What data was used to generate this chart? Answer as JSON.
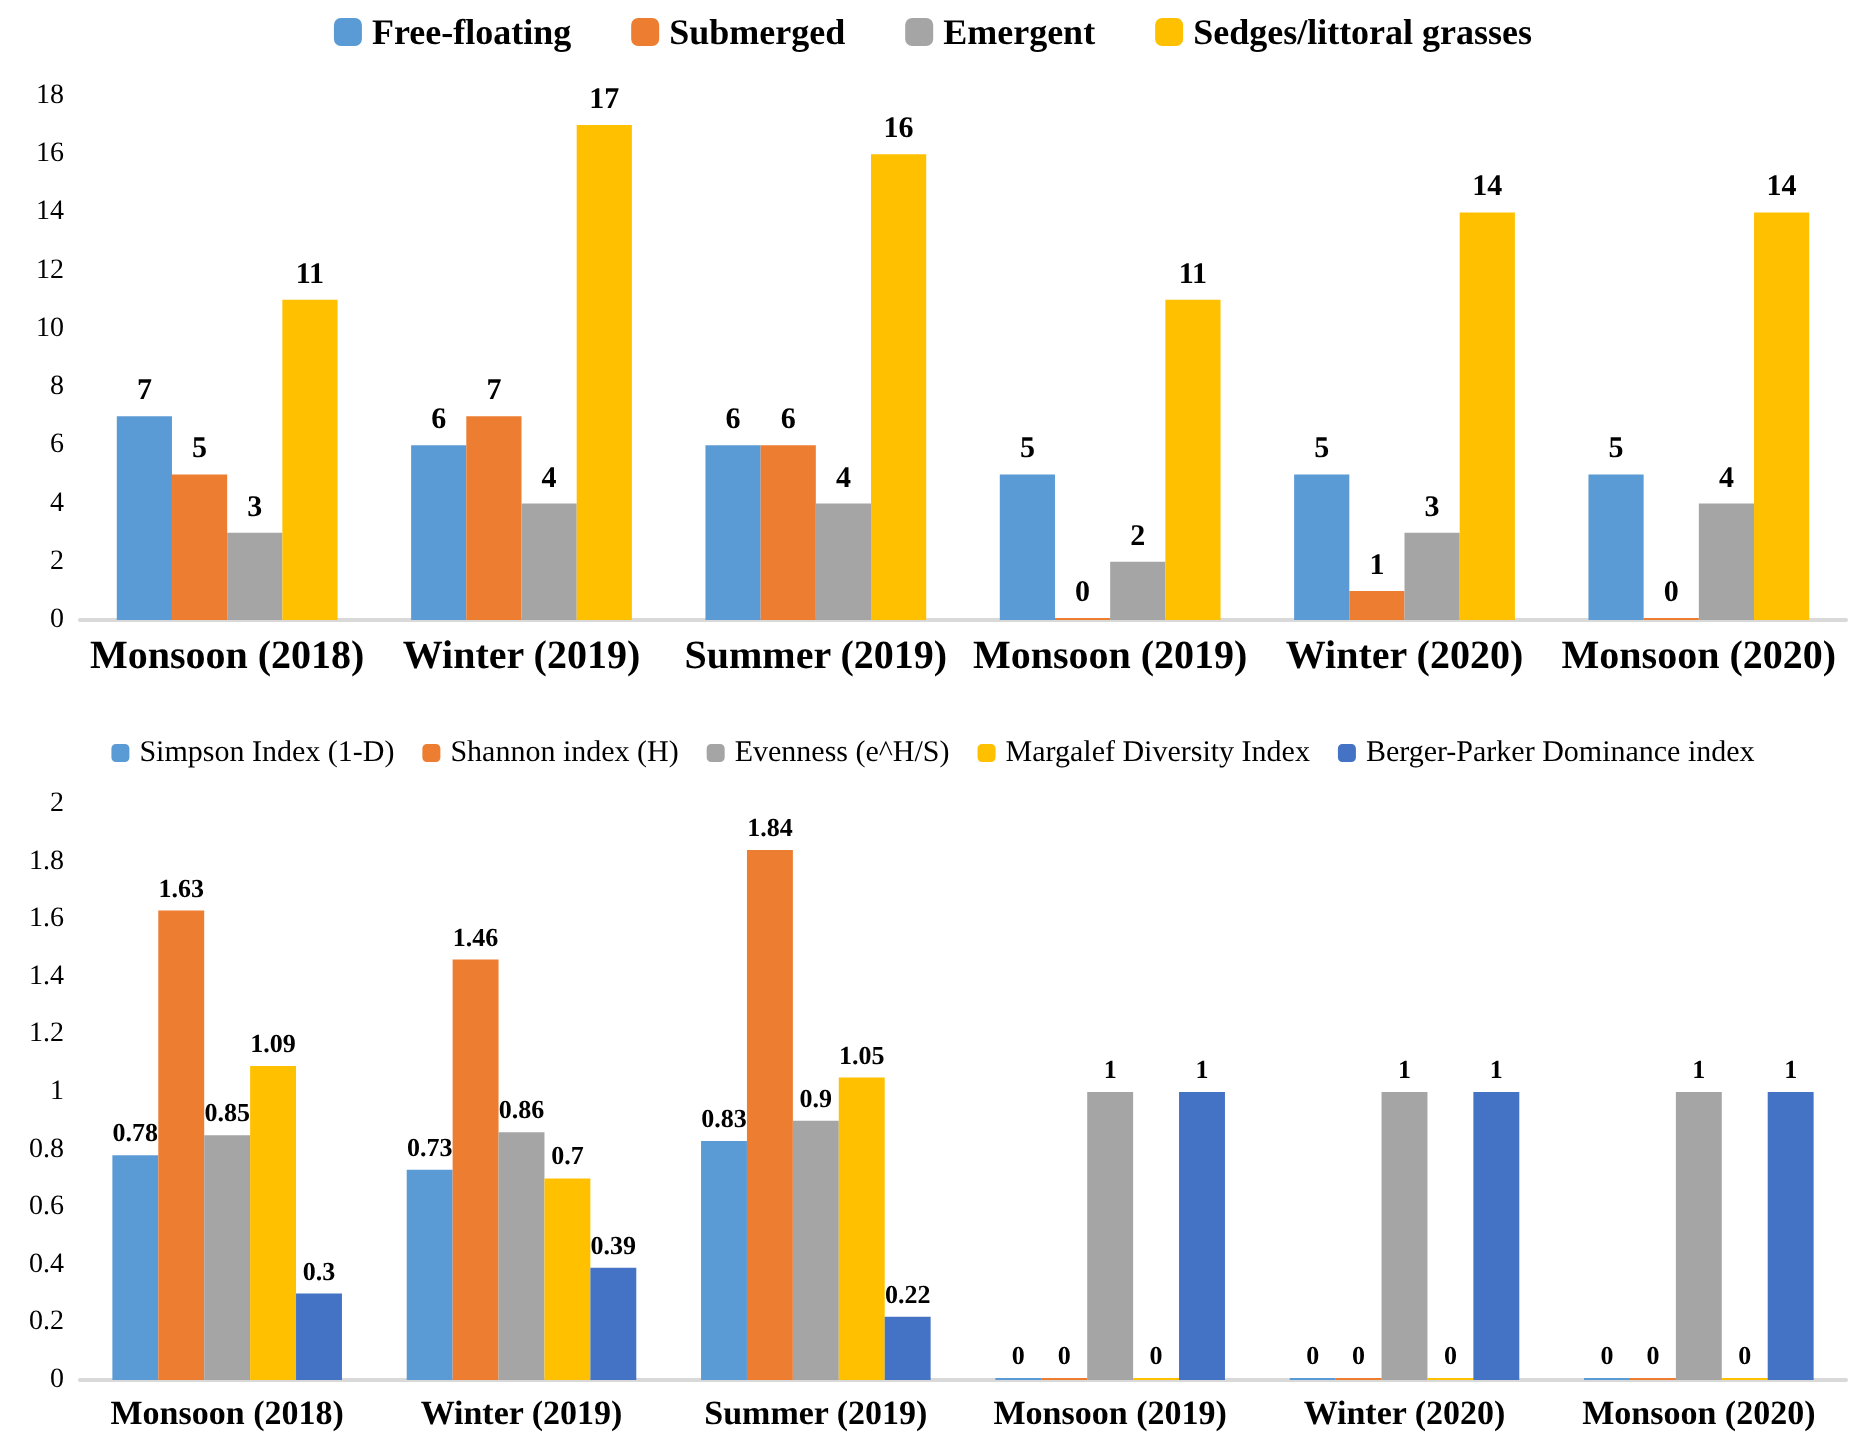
{
  "chart_data": [
    {
      "type": "bar",
      "categories": [
        "Monsoon (2018)",
        "Winter (2019)",
        "Summer (2019)",
        "Monsoon (2019)",
        "Winter (2020)",
        "Monsoon (2020)"
      ],
      "series": [
        {
          "name": "Free-floating",
          "color": "#5b9bd5",
          "values": [
            7,
            6,
            6,
            5,
            5,
            5
          ]
        },
        {
          "name": "Submerged",
          "color": "#ed7d31",
          "values": [
            5,
            7,
            6,
            0,
            1,
            0
          ]
        },
        {
          "name": "Emergent",
          "color": "#a5a5a5",
          "values": [
            3,
            4,
            4,
            2,
            3,
            4
          ]
        },
        {
          "name": "Sedges/littoral grasses",
          "color": "#ffc000",
          "values": [
            11,
            17,
            16,
            11,
            14,
            14
          ]
        }
      ],
      "ylim": [
        0,
        18
      ],
      "yticks": [
        0,
        2,
        4,
        6,
        8,
        10,
        12,
        14,
        16,
        18
      ],
      "grid": false,
      "legend": "top",
      "data_labels": true
    },
    {
      "type": "bar",
      "categories": [
        "Monsoon (2018)",
        "Winter (2019)",
        "Summer (2019)",
        "Monsoon (2019)",
        "Winter (2020)",
        "Monsoon (2020)"
      ],
      "series": [
        {
          "name": "Simpson Index (1-D)",
          "color": "#5b9bd5",
          "values": [
            0.78,
            0.73,
            0.83,
            0,
            0,
            0
          ]
        },
        {
          "name": "Shannon index (H)",
          "color": "#ed7d31",
          "values": [
            1.63,
            1.46,
            1.84,
            0,
            0,
            0
          ]
        },
        {
          "name": "Evenness (e^H/S)",
          "color": "#a5a5a5",
          "values": [
            0.85,
            0.86,
            0.9,
            1,
            1,
            1
          ]
        },
        {
          "name": "Margalef Diversity Index",
          "color": "#ffc000",
          "values": [
            1.09,
            0.7,
            1.05,
            0,
            0,
            0
          ]
        },
        {
          "name": "Berger-Parker Dominance index",
          "color": "#4472c4",
          "values": [
            0.3,
            0.39,
            0.22,
            1,
            1,
            1
          ]
        }
      ],
      "ylim": [
        0,
        2
      ],
      "yticks": [
        0,
        0.2,
        0.4,
        0.6,
        0.8,
        1,
        1.2,
        1.4,
        1.6,
        1.8,
        2
      ],
      "grid": false,
      "legend": "top",
      "data_labels": true
    }
  ]
}
